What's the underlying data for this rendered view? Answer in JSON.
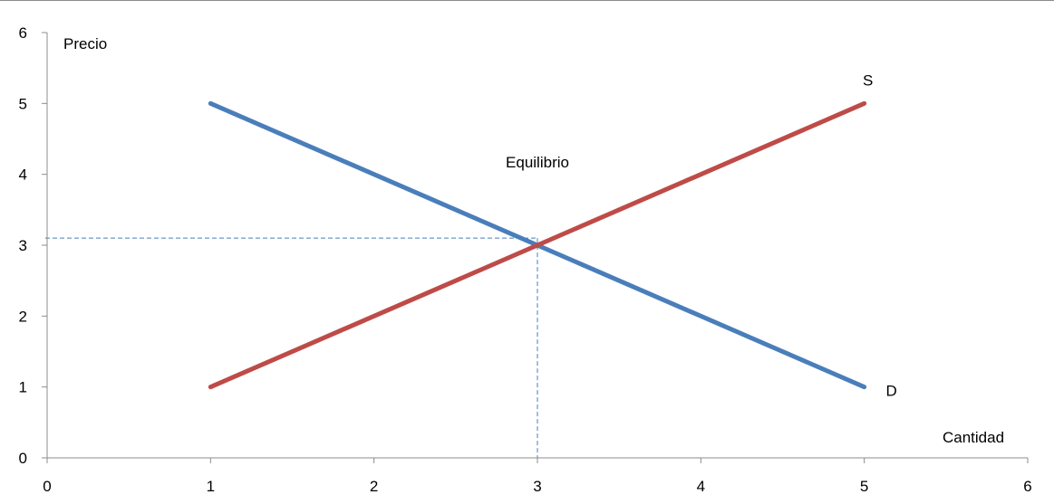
{
  "chart_data": {
    "type": "line",
    "x_ticks": [
      0,
      1,
      2,
      3,
      4,
      5,
      6
    ],
    "y_ticks": [
      0,
      1,
      2,
      3,
      4,
      5,
      6
    ],
    "xlim": [
      0,
      6
    ],
    "ylim": [
      0,
      6
    ],
    "xlabel": "Cantidad",
    "ylabel": "Precio",
    "grid": false,
    "series": [
      {
        "name": "D",
        "color": "#4a7ebb",
        "points": [
          [
            1,
            5
          ],
          [
            5,
            1
          ]
        ]
      },
      {
        "name": "S",
        "color": "#be4b48",
        "points": [
          [
            1,
            1
          ],
          [
            5,
            5
          ]
        ]
      }
    ],
    "annotations": [
      {
        "text": "Equilibrio",
        "x": 3,
        "y": 4.1
      }
    ],
    "reference_lines": {
      "horizontal_y": 3.1,
      "vertical_x": 3,
      "color": "#4a7ebb",
      "style": "dashed"
    }
  }
}
